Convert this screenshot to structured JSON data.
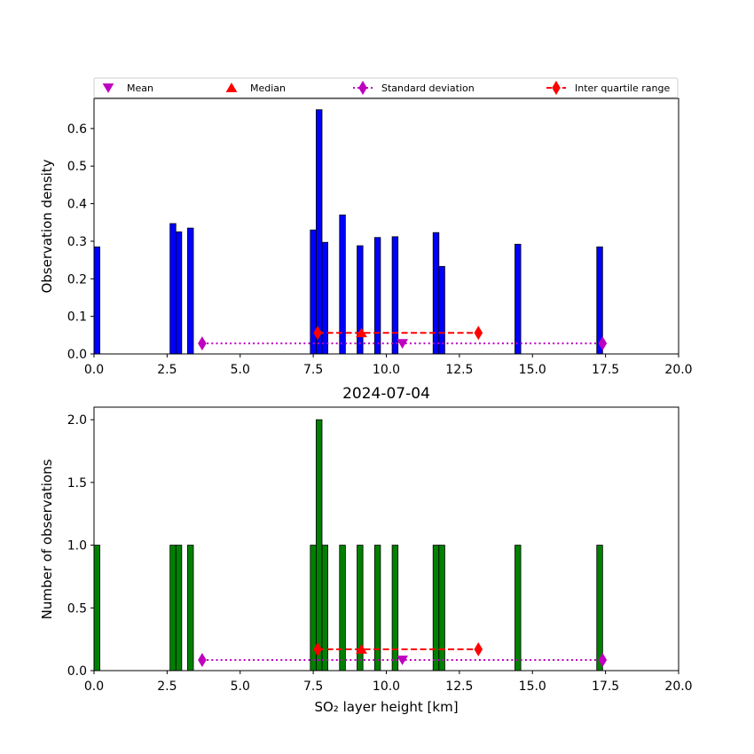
{
  "chart_data": [
    {
      "type": "bar",
      "ylabel": "Observation density",
      "xlabel": "",
      "xlim": [
        0,
        20
      ],
      "ylim": [
        0,
        0.68
      ],
      "xticks": [
        "0.0",
        "2.5",
        "5.0",
        "7.5",
        "10.0",
        "12.5",
        "15.0",
        "17.5",
        "20.0"
      ],
      "yticks": [
        "0.0",
        "0.1",
        "0.2",
        "0.3",
        "0.4",
        "0.5",
        "0.6"
      ],
      "bin_width": 0.2,
      "bar_color": "#0000ff",
      "bars": [
        {
          "x": 0.0,
          "value": 0.285
        },
        {
          "x": 2.6,
          "value": 0.347
        },
        {
          "x": 2.8,
          "value": 0.325
        },
        {
          "x": 3.2,
          "value": 0.335
        },
        {
          "x": 7.4,
          "value": 0.33
        },
        {
          "x": 7.6,
          "value": 0.65
        },
        {
          "x": 7.8,
          "value": 0.297
        },
        {
          "x": 8.4,
          "value": 0.37
        },
        {
          "x": 9.0,
          "value": 0.288
        },
        {
          "x": 9.6,
          "value": 0.31
        },
        {
          "x": 10.2,
          "value": 0.312
        },
        {
          "x": 11.6,
          "value": 0.323
        },
        {
          "x": 11.8,
          "value": 0.233
        },
        {
          "x": 14.4,
          "value": 0.292
        },
        {
          "x": 17.2,
          "value": 0.285
        }
      ],
      "std_line": {
        "x": [
          3.7,
          17.4
        ],
        "y": 0.028
      },
      "mean": {
        "x": 10.55,
        "y": 0.028
      },
      "iqr_line": {
        "x": [
          7.65,
          13.15
        ],
        "y": 0.056
      },
      "median": {
        "x": 9.15,
        "y": 0.056
      }
    },
    {
      "type": "bar",
      "title": "2024-07-04",
      "ylabel": "Number of observations",
      "xlabel": "SO₂ layer height [km]",
      "xlim": [
        0,
        20
      ],
      "ylim": [
        0,
        2.1
      ],
      "xticks": [
        "0.0",
        "2.5",
        "5.0",
        "7.5",
        "10.0",
        "12.5",
        "15.0",
        "17.5",
        "20.0"
      ],
      "yticks": [
        "0.0",
        "0.5",
        "1.0",
        "1.5",
        "2.0"
      ],
      "bin_width": 0.2,
      "bar_color": "#008000",
      "bars": [
        {
          "x": 0.0,
          "value": 1
        },
        {
          "x": 2.6,
          "value": 1
        },
        {
          "x": 2.8,
          "value": 1
        },
        {
          "x": 3.2,
          "value": 1
        },
        {
          "x": 7.4,
          "value": 1
        },
        {
          "x": 7.6,
          "value": 2
        },
        {
          "x": 7.8,
          "value": 1
        },
        {
          "x": 8.4,
          "value": 1
        },
        {
          "x": 9.0,
          "value": 1
        },
        {
          "x": 9.6,
          "value": 1
        },
        {
          "x": 10.2,
          "value": 1
        },
        {
          "x": 11.6,
          "value": 1
        },
        {
          "x": 11.8,
          "value": 1
        },
        {
          "x": 14.4,
          "value": 1
        },
        {
          "x": 17.2,
          "value": 1
        }
      ],
      "std_line": {
        "x": [
          3.7,
          17.4
        ],
        "y": 0.085
      },
      "mean": {
        "x": 10.55,
        "y": 0.085
      },
      "iqr_line": {
        "x": [
          7.65,
          13.15
        ],
        "y": 0.17
      },
      "median": {
        "x": 9.15,
        "y": 0.17
      }
    }
  ],
  "legend": {
    "placement": "top, above upper panel",
    "entries": [
      {
        "label": "Mean",
        "marker": "triangle-down",
        "color": "#bf00bf"
      },
      {
        "label": "Median",
        "marker": "triangle-up",
        "color": "#ff0000"
      },
      {
        "label": "Standard deviation",
        "marker": "thin-diamond",
        "color": "#bf00bf",
        "line": "dotted"
      },
      {
        "label": "Inter quartile range",
        "marker": "thin-diamond",
        "color": "#ff0000",
        "line": "dashed"
      }
    ]
  },
  "colors": {
    "mean": "#bf00bf",
    "median": "#ff0000",
    "std": "#bf00bf",
    "iqr": "#ff0000"
  }
}
